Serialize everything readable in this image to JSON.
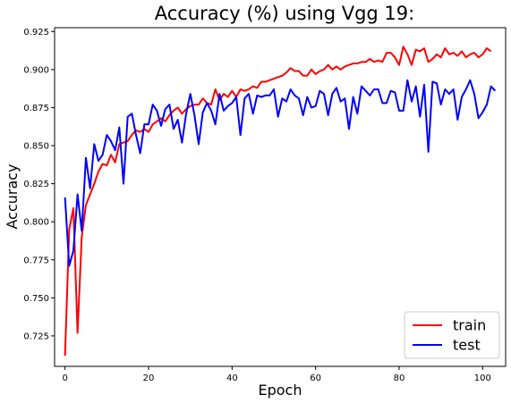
{
  "chart_data": {
    "type": "line",
    "title": "Accuracy (%) using Vgg 19:",
    "xlabel": "Epoch",
    "ylabel": "Accuracy",
    "xlim": [
      -2.5,
      105.5
    ],
    "ylim": [
      0.705,
      0.9275
    ],
    "xticks": [
      0,
      20,
      40,
      60,
      80,
      100
    ],
    "yticks": [
      0.725,
      0.75,
      0.775,
      0.8,
      0.825,
      0.85,
      0.875,
      0.9,
      0.925
    ],
    "xtick_labels": [
      "0",
      "20",
      "40",
      "60",
      "80",
      "100"
    ],
    "ytick_labels": [
      "0.725",
      "0.750",
      "0.775",
      "0.800",
      "0.825",
      "0.850",
      "0.875",
      "0.900",
      "0.925"
    ],
    "grid": false,
    "legend": {
      "placement": "lower-right"
    },
    "series": [
      {
        "name": "train",
        "color": "#ff0000",
        "values": [
          0.712,
          0.795,
          0.809,
          0.727,
          0.79,
          0.811,
          0.818,
          0.825,
          0.833,
          0.838,
          0.837,
          0.844,
          0.839,
          0.851,
          0.852,
          0.853,
          0.857,
          0.86,
          0.859,
          0.861,
          0.859,
          0.864,
          0.866,
          0.868,
          0.866,
          0.87,
          0.873,
          0.875,
          0.871,
          0.874,
          0.876,
          0.877,
          0.877,
          0.881,
          0.878,
          0.877,
          0.887,
          0.88,
          0.884,
          0.882,
          0.886,
          0.882,
          0.887,
          0.886,
          0.887,
          0.889,
          0.888,
          0.892,
          0.892,
          0.893,
          0.894,
          0.895,
          0.896,
          0.898,
          0.901,
          0.899,
          0.899,
          0.896,
          0.896,
          0.9,
          0.897,
          0.899,
          0.9,
          0.903,
          0.9,
          0.902,
          0.9,
          0.902,
          0.903,
          0.904,
          0.904,
          0.905,
          0.905,
          0.907,
          0.905,
          0.906,
          0.905,
          0.911,
          0.911,
          0.908,
          0.903,
          0.915,
          0.91,
          0.903,
          0.913,
          0.912,
          0.914,
          0.905,
          0.907,
          0.91,
          0.908,
          0.914,
          0.91,
          0.911,
          0.909,
          0.912,
          0.908,
          0.91,
          0.911,
          0.908,
          0.91,
          0.914,
          0.912
        ]
      },
      {
        "name": "test",
        "color": "#0000ff",
        "values": [
          0.816,
          0.771,
          0.781,
          0.818,
          0.794,
          0.842,
          0.822,
          0.851,
          0.84,
          0.844,
          0.857,
          0.853,
          0.847,
          0.862,
          0.825,
          0.869,
          0.871,
          0.857,
          0.845,
          0.864,
          0.864,
          0.877,
          0.873,
          0.863,
          0.874,
          0.877,
          0.861,
          0.867,
          0.852,
          0.871,
          0.884,
          0.87,
          0.851,
          0.872,
          0.878,
          0.873,
          0.864,
          0.884,
          0.873,
          0.876,
          0.878,
          0.882,
          0.857,
          0.881,
          0.884,
          0.871,
          0.883,
          0.882,
          0.883,
          0.883,
          0.887,
          0.869,
          0.881,
          0.879,
          0.887,
          0.883,
          0.881,
          0.87,
          0.882,
          0.875,
          0.876,
          0.886,
          0.884,
          0.87,
          0.884,
          0.888,
          0.879,
          0.881,
          0.861,
          0.882,
          0.871,
          0.889,
          0.886,
          0.883,
          0.887,
          0.887,
          0.878,
          0.878,
          0.886,
          0.885,
          0.873,
          0.873,
          0.893,
          0.879,
          0.889,
          0.869,
          0.89,
          0.846,
          0.892,
          0.891,
          0.877,
          0.887,
          0.884,
          0.887,
          0.867,
          0.882,
          0.887,
          0.893,
          0.884,
          0.868,
          0.872,
          0.877,
          0.889,
          0.886
        ]
      }
    ]
  }
}
